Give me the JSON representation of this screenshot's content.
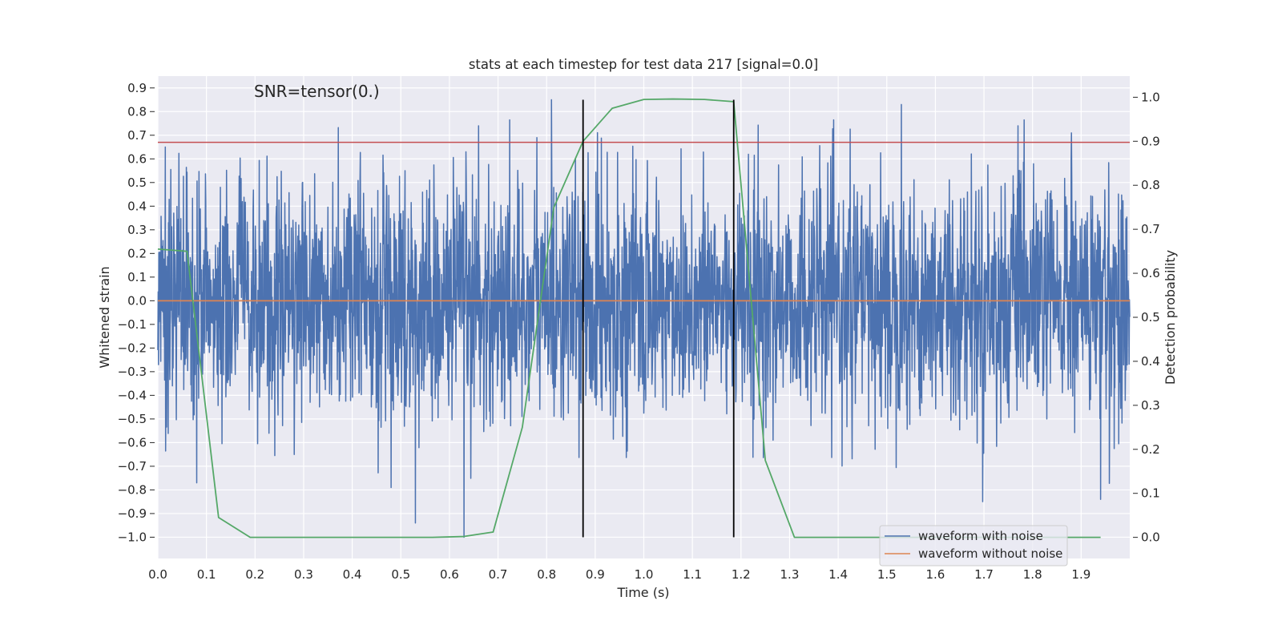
{
  "chart_data": {
    "type": "line",
    "title": "stats at each timestep for test data 217 [signal=0.0]",
    "annotation": "SNR=tensor(0.)",
    "xlabel": "Time (s)",
    "ylabel_left": "Whitened strain",
    "ylabel_right": "Detection probability",
    "xlim": [
      0.0,
      2.0
    ],
    "ylim_left": [
      -1.09,
      0.95
    ],
    "ylim_right": [
      -0.048,
      1.048
    ],
    "x_ticks": [
      "0.0",
      "0.1",
      "0.2",
      "0.3",
      "0.4",
      "0.5",
      "0.6",
      "0.7",
      "0.8",
      "0.9",
      "1.0",
      "1.1",
      "1.2",
      "1.3",
      "1.4",
      "1.5",
      "1.6",
      "1.7",
      "1.8",
      "1.9"
    ],
    "y_ticks_left": [
      "0.9",
      "0.8",
      "0.7",
      "0.6",
      "0.5",
      "0.4",
      "0.3",
      "0.2",
      "0.1",
      "0.0",
      "−0.1",
      "−0.2",
      "−0.3",
      "−0.4",
      "−0.5",
      "−0.6",
      "−0.7",
      "−0.8",
      "−0.9",
      "−1.0"
    ],
    "y_ticks_right": [
      "1.0",
      "0.9",
      "0.8",
      "0.7",
      "0.6",
      "0.5",
      "0.4",
      "0.3",
      "0.2",
      "0.1",
      "0.0"
    ],
    "grid": true,
    "legend_position": "bottom-right",
    "series": [
      {
        "name": "waveform with noise",
        "axis": "left",
        "color": "#4c72b0",
        "kind": "noise",
        "t_range": [
          0.0,
          2.0
        ],
        "approx_std": 0.25,
        "approx_min": -1.0,
        "approx_max": 0.85,
        "notable_peaks": [
          {
            "x": 0.015,
            "y": 0.65
          },
          {
            "x": 0.81,
            "y": 0.85
          },
          {
            "x": 0.66,
            "y": 0.74
          },
          {
            "x": 0.78,
            "y": 0.69
          },
          {
            "x": 1.53,
            "y": 0.83
          },
          {
            "x": 1.77,
            "y": 0.74
          },
          {
            "x": 1.88,
            "y": 0.71
          },
          {
            "x": 0.63,
            "y": -1.0
          },
          {
            "x": 0.53,
            "y": -0.94
          },
          {
            "x": 1.94,
            "y": -0.84
          },
          {
            "x": 0.08,
            "y": -0.77
          },
          {
            "x": 0.48,
            "y": -0.79
          }
        ]
      },
      {
        "name": "waveform without noise",
        "axis": "left",
        "color": "#dd8452",
        "x": [
          0.0,
          2.0
        ],
        "y": [
          0.0,
          0.0
        ]
      },
      {
        "name": "Detection probability",
        "axis": "right",
        "color": "#55a868",
        "x": [
          0.0,
          0.06,
          0.125,
          0.19,
          0.25,
          0.31,
          0.375,
          0.44,
          0.5,
          0.565,
          0.63,
          0.69,
          0.75,
          0.815,
          0.875,
          0.935,
          1.0,
          1.06,
          1.125,
          1.185,
          1.25,
          1.31,
          1.375,
          1.435,
          1.5,
          1.56,
          1.625,
          1.685,
          1.75,
          1.81,
          1.875,
          1.94
        ],
        "y": [
          0.655,
          0.65,
          0.045,
          0.0,
          0.0,
          0.0,
          0.0,
          0.0,
          0.0,
          0.0,
          0.002,
          0.012,
          0.25,
          0.75,
          0.9,
          0.975,
          0.995,
          0.996,
          0.995,
          0.99,
          0.175,
          0.0,
          0.0,
          0.0,
          0.0,
          0.0,
          0.0,
          0.0,
          0.0,
          0.0,
          0.0,
          0.0
        ]
      }
    ],
    "horizontal_lines": [
      {
        "axis": "left",
        "y": 0.67,
        "color": "#c44e52"
      }
    ],
    "vertical_lines": [
      {
        "x": 0.875,
        "y_range": [
          -1.0,
          0.85
        ],
        "color": "#000000"
      },
      {
        "x": 1.185,
        "y_range": [
          -1.0,
          0.85
        ],
        "color": "#000000"
      }
    ]
  }
}
